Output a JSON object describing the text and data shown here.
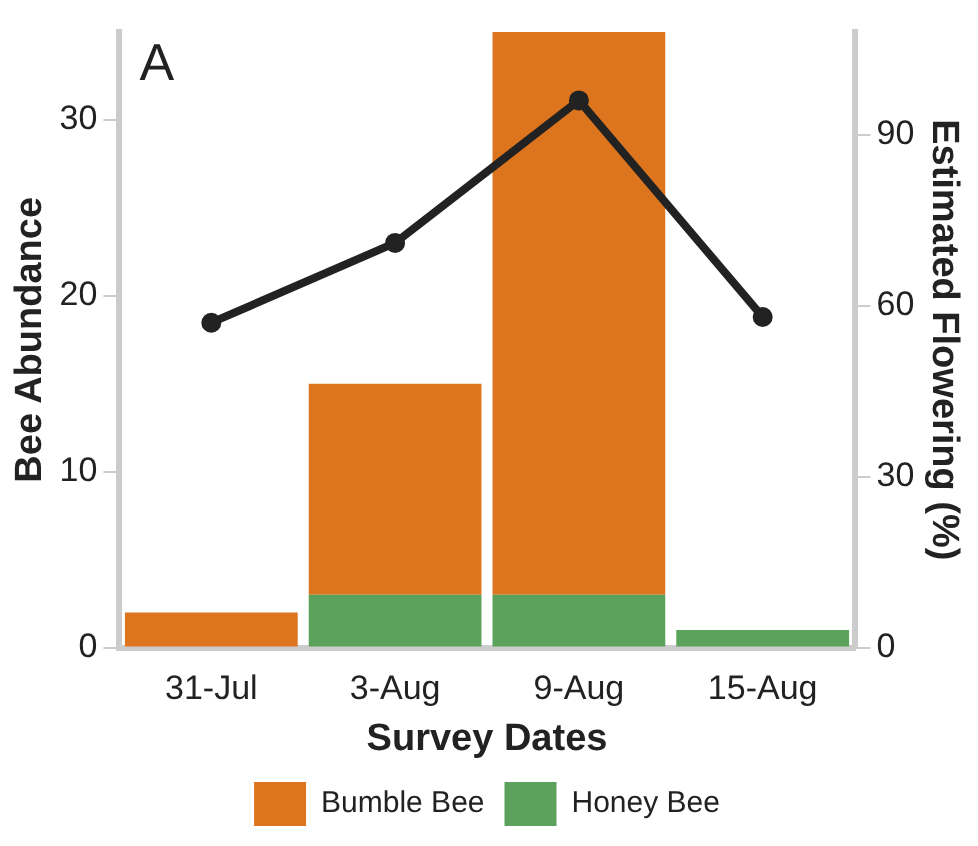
{
  "chart_data": {
    "type": "bar",
    "stacked": true,
    "categories": [
      "31-Jul",
      "3-Aug",
      "9-Aug",
      "15-Aug"
    ],
    "xlabel": "Survey Dates",
    "ylabel": "Bee Abundance",
    "y2label": "Estimated Flowering (%)",
    "annotations": [
      "A"
    ],
    "series": [
      {
        "name": "Honey Bee",
        "color": "#5ba35c",
        "values": [
          0,
          3,
          3,
          1
        ]
      },
      {
        "name": "Bumble Bee",
        "color": "#dd751e",
        "values": [
          2,
          12,
          32,
          0
        ]
      },
      {
        "type": "line",
        "axis": "y2",
        "color": "#222222",
        "values": [
          57,
          71,
          96,
          58
        ]
      }
    ],
    "ylim": [
      0,
      35
    ],
    "yticks": [
      0,
      10,
      20,
      30
    ],
    "y2lim": [
      0,
      108
    ],
    "y2ticks": [
      0,
      30,
      60,
      90
    ],
    "grid": false,
    "legend": "bottom",
    "marker": "circle",
    "line_style": "solid"
  }
}
